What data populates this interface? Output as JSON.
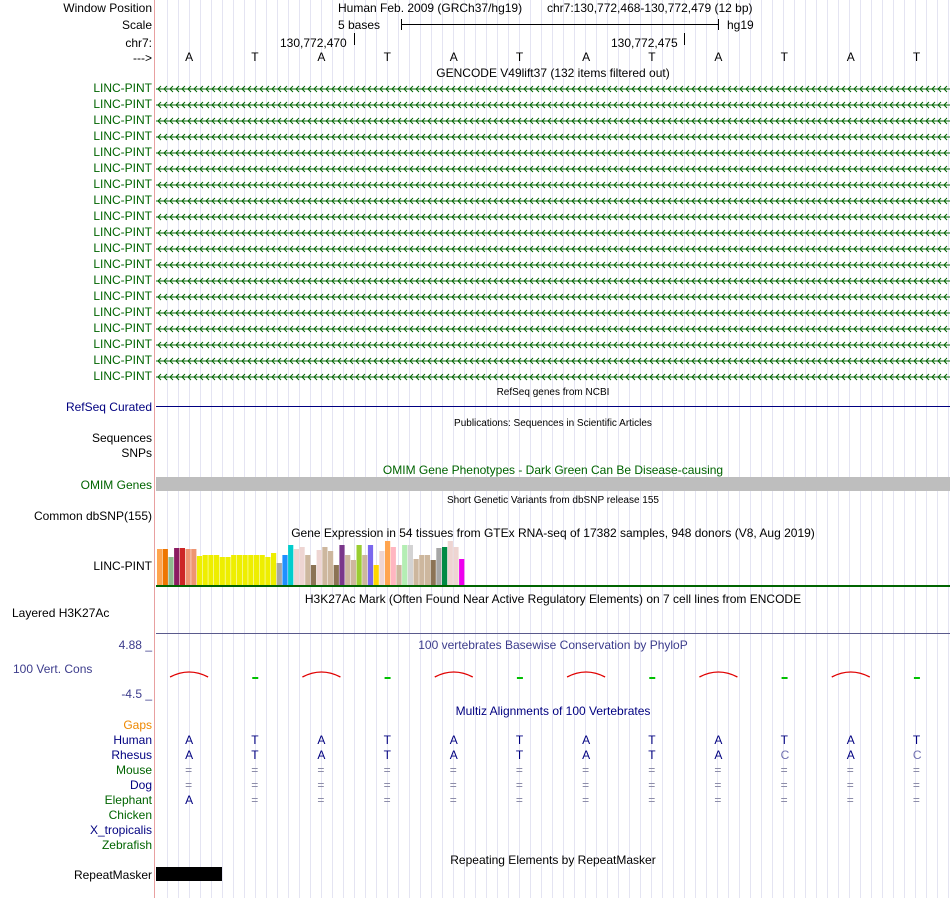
{
  "header": {
    "window_position_label": "Window Position",
    "scale_label": "Scale",
    "chr_label": "chr7:",
    "strand_label": "--->",
    "assembly": "Human Feb. 2009 (GRCh37/hg19)",
    "position": "chr7:130,772,468-130,772,479 (12 bp)",
    "scale_text": "5 bases",
    "db": "hg19",
    "coord_1": "130,772,470",
    "coord_2": "130,772,475"
  },
  "bases": [
    "A",
    "T",
    "A",
    "T",
    "A",
    "T",
    "A",
    "T",
    "A",
    "T",
    "A",
    "T"
  ],
  "gencode": {
    "title": "GENCODE V49lift37 (132 items filtered out)",
    "items": [
      "LINC-PINT",
      "LINC-PINT",
      "LINC-PINT",
      "LINC-PINT",
      "LINC-PINT",
      "LINC-PINT",
      "LINC-PINT",
      "LINC-PINT",
      "LINC-PINT",
      "LINC-PINT",
      "LINC-PINT",
      "LINC-PINT",
      "LINC-PINT",
      "LINC-PINT",
      "LINC-PINT",
      "LINC-PINT",
      "LINC-PINT",
      "LINC-PINT",
      "LINC-PINT"
    ],
    "color": "#006400"
  },
  "refseq": {
    "title": "RefSeq genes from NCBI",
    "label": "RefSeq Curated",
    "color": "#000080"
  },
  "publications": {
    "title": "Publications: Sequences in Scientific Articles",
    "label_1": "Sequences",
    "label_2": "SNPs"
  },
  "omim": {
    "title": "OMIM Gene Phenotypes - Dark Green Can Be Disease-causing",
    "label": "OMIM Genes"
  },
  "dbsnp": {
    "title": "Short Genetic Variants from dbSNP release 155",
    "label": "Common dbSNP(155)"
  },
  "gtex": {
    "title": "Gene Expression in 54 tissues from GTEx RNA-seq of 17382 samples, 948 donors (V8, Aug 2019)",
    "label": "LINC-PINT",
    "values": [
      36,
      36,
      28,
      37,
      37,
      36,
      36,
      29,
      30,
      30,
      30,
      28,
      28,
      30,
      30,
      30,
      30,
      30,
      30,
      28,
      32,
      22,
      30,
      40,
      36,
      38,
      30,
      20,
      35,
      38,
      34,
      20,
      40,
      30,
      25,
      40,
      30,
      40,
      20,
      34,
      44,
      38,
      20,
      40,
      40,
      26,
      30,
      30,
      25,
      37,
      38,
      44,
      38,
      26
    ],
    "colors": [
      "#ffa54f",
      "#ee7600",
      "#8fbc8f",
      "#8b1c62",
      "#cd2626",
      "#ee9572",
      "#ee9572",
      "#eeee00",
      "#eeee00",
      "#eeee00",
      "#eeee00",
      "#eeee00",
      "#eeee00",
      "#eeee00",
      "#eeee00",
      "#eeee00",
      "#eeee00",
      "#eeee00",
      "#eeee00",
      "#eeee00",
      "#eeee00",
      "#a6a6a6",
      "#1e90ff",
      "#00cdcd",
      "#eed5d2",
      "#eed5d2",
      "#cdb79e",
      "#8b7355",
      "#eed5d2",
      "#cdb79e",
      "#cdb79e",
      "#8b7355",
      "#7a378b",
      "#cdb79e",
      "#cdb79e",
      "#9acd32",
      "#cdb79e",
      "#7a67ee",
      "#ffd700",
      "#eed5d2",
      "#ffa54f",
      "#ffb6c1",
      "#cdb79e",
      "#b4eeb4",
      "#d3d3d3",
      "#cdb79e",
      "#cdb79e",
      "#cdb79e",
      "#8b7355",
      "#a6a6a6",
      "#008b45",
      "#eed5d2",
      "#eed5d2",
      "#ee00ee"
    ]
  },
  "h3k27ac": {
    "title": "H3K27Ac Mark (Often Found Near Active Regulatory Elements) on 7 cell lines from ENCODE",
    "label": "Layered H3K27Ac"
  },
  "conservation": {
    "title": "100 vertebrates Basewise Conservation by PhyloP",
    "label": "100 Vert. Cons",
    "max": "4.88 _",
    "min": "-4.5 _"
  },
  "multiz": {
    "title": "Multiz Alignments of 100 Vertebrates",
    "gaps_label": "Gaps",
    "species": [
      {
        "name": "Human",
        "color": "#000080",
        "bases": [
          "A",
          "T",
          "A",
          "T",
          "A",
          "T",
          "A",
          "T",
          "A",
          "T",
          "A",
          "T"
        ]
      },
      {
        "name": "Rhesus",
        "color": "#000080",
        "bases": [
          "A",
          "T",
          "A",
          "T",
          "A",
          "T",
          "A",
          "T",
          "A",
          "C",
          "A",
          "C"
        ]
      },
      {
        "name": "Mouse",
        "color": "#006400",
        "bases": [
          "=",
          "=",
          "=",
          "=",
          "=",
          "=",
          "=",
          "=",
          "=",
          "=",
          "=",
          "="
        ]
      },
      {
        "name": "Dog",
        "color": "#000080",
        "bases": [
          "=",
          "=",
          "=",
          "=",
          "=",
          "=",
          "=",
          "=",
          "=",
          "=",
          "=",
          "="
        ]
      },
      {
        "name": "Elephant",
        "color": "#006400",
        "bases": [
          "A",
          "=",
          "=",
          "=",
          "=",
          "=",
          "=",
          "=",
          "=",
          "=",
          "=",
          "="
        ]
      },
      {
        "name": "Chicken",
        "color": "#006400",
        "bases": [
          "",
          "",
          "",
          "",
          "",
          "",
          "",
          "",
          "",
          "",
          "",
          ""
        ]
      },
      {
        "name": "X_tropicalis",
        "color": "#000080",
        "bases": [
          "",
          "",
          "",
          "",
          "",
          "",
          "",
          "",
          "",
          "",
          "",
          ""
        ]
      },
      {
        "name": "Zebrafish",
        "color": "#006400",
        "bases": [
          "",
          "",
          "",
          "",
          "",
          "",
          "",
          "",
          "",
          "",
          "",
          ""
        ]
      }
    ]
  },
  "repeatmasker": {
    "title": "Repeating Elements by RepeatMasker",
    "label": "RepeatMasker"
  },
  "colors": {
    "gaps": "#ee8800",
    "omim_bar": "#bebebe",
    "cons_line": "#e00000",
    "cons_low": "#00c000"
  }
}
